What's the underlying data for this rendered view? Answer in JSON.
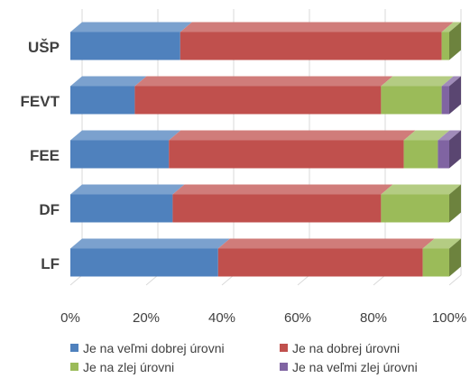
{
  "chart_data": {
    "type": "bar",
    "orientation": "horizontal",
    "stacked": true,
    "percent": true,
    "style": "3d",
    "categories": [
      "UŠP",
      "FEVT",
      "FEE",
      "DF",
      "LF"
    ],
    "series": [
      {
        "name": "Je na veľmi dobrej úrovni",
        "color": "#4F81BD",
        "values": [
          29,
          17,
          26,
          27,
          39
        ]
      },
      {
        "name": "Je na dobrej úrovni",
        "color": "#C0504D",
        "values": [
          69,
          65,
          62,
          55,
          54
        ]
      },
      {
        "name": "Je na zlej úrovni",
        "color": "#9BBB59",
        "values": [
          2,
          16,
          9,
          18,
          7
        ]
      },
      {
        "name": "Je na veľmi zlej úrovni",
        "color": "#8064A2",
        "values": [
          0,
          2,
          3,
          0,
          0
        ]
      }
    ],
    "x_ticks": [
      "0%",
      "20%",
      "40%",
      "60%",
      "80%",
      "100%"
    ],
    "xlim": [
      0,
      100
    ],
    "grid": true,
    "legend_position": "bottom"
  }
}
